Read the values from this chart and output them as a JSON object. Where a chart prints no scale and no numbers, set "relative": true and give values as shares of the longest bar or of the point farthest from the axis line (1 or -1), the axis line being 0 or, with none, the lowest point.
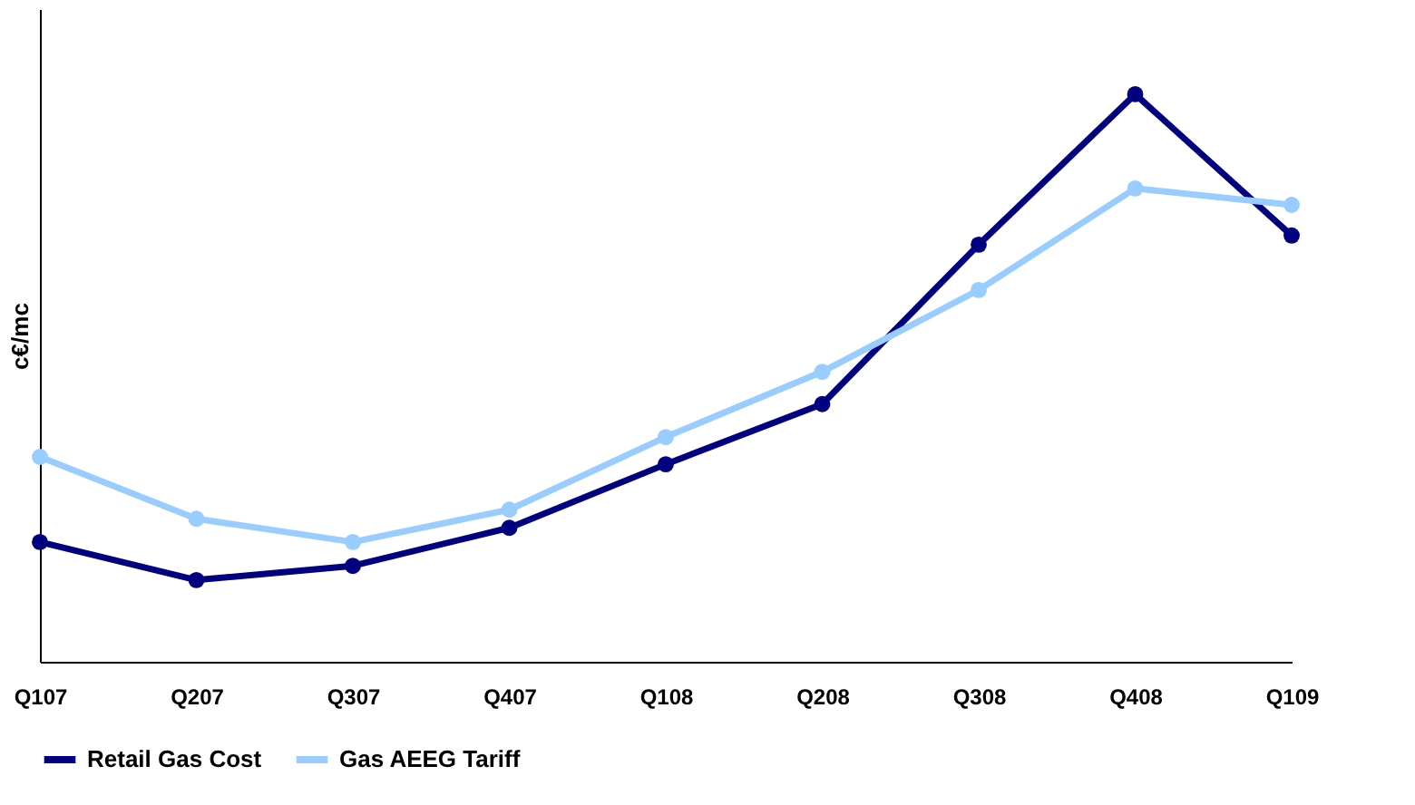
{
  "chart_data": {
    "type": "line",
    "relative": true,
    "ylabel": "c€/mc",
    "categories": [
      "Q107",
      "Q207",
      "Q307",
      "Q407",
      "Q108",
      "Q208",
      "Q308",
      "Q408",
      "Q109"
    ],
    "series": [
      {
        "name": "Retail Gas Cost",
        "color": "#000080",
        "values": [
          0.211,
          0.144,
          0.169,
          0.236,
          0.348,
          0.454,
          0.735,
          1,
          0.751
        ]
      },
      {
        "name": "Gas AEEG Tariff",
        "color": "#99ccff",
        "values": [
          0.361,
          0.252,
          0.211,
          0.268,
          0.396,
          0.511,
          0.655,
          0.834,
          0.805
        ]
      }
    ],
    "marker": "circle",
    "line_style": "solid",
    "grid": false,
    "legend": "bottom"
  }
}
